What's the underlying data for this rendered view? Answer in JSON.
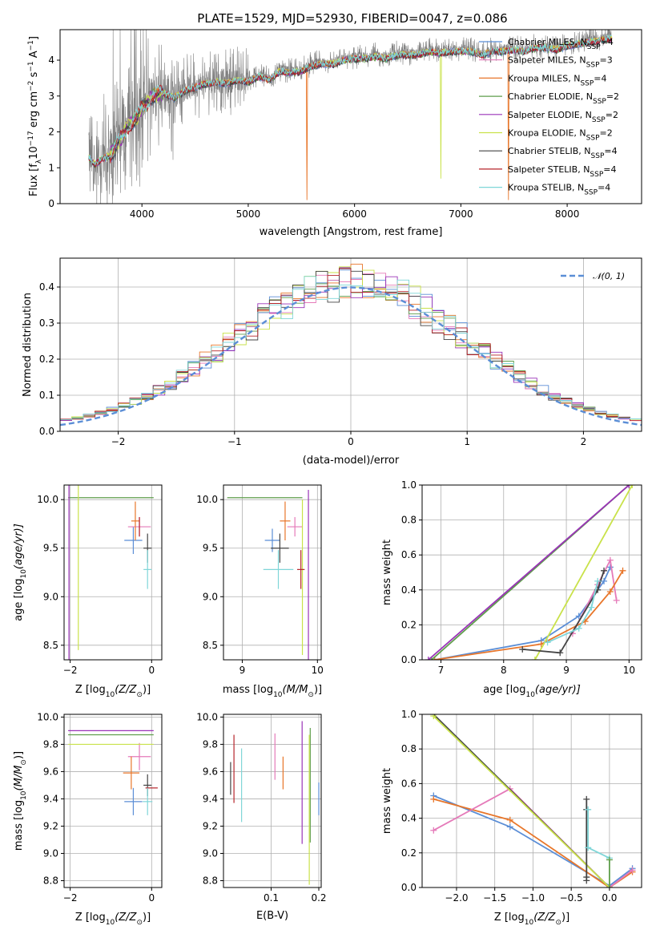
{
  "figure": {
    "title": "PLATE=1529, MJD=52930, FIBERID=0047, z=0.086"
  },
  "colors": {
    "chabrier_miles": "#5b8ed6",
    "salpeter_miles": "#e57ab9",
    "kroupa_miles": "#e8762a",
    "chabrier_elodie": "#5f9e4c",
    "salpeter_elodie": "#9a33b8",
    "kroupa_elodie": "#c9e24a",
    "chabrier_stelib": "#444444",
    "salpeter_stelib": "#b5242a",
    "kroupa_stelib": "#7fd6d8",
    "data": "#7f7f7f",
    "normal": "#5b8ed6",
    "grid": "#b0b0b0"
  },
  "chart_data": [
    {
      "id": "spectrum",
      "type": "line",
      "xlabel": "wavelength [Angstrom, rest frame]",
      "ylabel": "Flux [f",
      "ylabel_parts": [
        "Flux [f",
        "λ",
        "10",
        "−17",
        " erg cm",
        "−2",
        " s",
        "−1",
        " A",
        "−1",
        "]"
      ],
      "xlim": [
        3230,
        8700
      ],
      "ylim": [
        0,
        4.85
      ],
      "xticks": [
        4000,
        5000,
        6000,
        7000,
        8000
      ],
      "yticks": [
        0,
        1,
        2,
        3,
        4
      ],
      "data_continuum": {
        "x": [
          3500,
          3560,
          3620,
          3700,
          3760,
          3820,
          3880,
          3950,
          4000,
          4050,
          4100,
          4200,
          4300,
          4400,
          4500,
          4600,
          4700,
          4800,
          4900,
          5000,
          5100,
          5200,
          5300,
          5400,
          5500,
          5600,
          5700,
          5800,
          5900,
          6000,
          6100,
          6200,
          6300,
          6400,
          6500,
          6600,
          6700,
          6800,
          6900,
          7000,
          7100,
          7200,
          7300,
          7400,
          7500,
          7600,
          7700,
          7800,
          7900,
          8000,
          8100,
          8200,
          8300,
          8400
        ],
        "y": [
          1.35,
          1.15,
          1.3,
          1.4,
          1.7,
          1.95,
          2.25,
          2.45,
          2.75,
          2.85,
          3.05,
          3.15,
          3.0,
          3.2,
          3.3,
          3.4,
          3.45,
          3.4,
          3.5,
          3.45,
          3.6,
          3.5,
          3.75,
          3.7,
          3.75,
          3.9,
          3.95,
          3.95,
          4.05,
          4.1,
          4.1,
          4.15,
          4.1,
          4.2,
          4.2,
          4.2,
          4.3,
          4.25,
          4.3,
          4.3,
          4.3,
          4.2,
          4.3,
          4.3,
          4.35,
          4.3,
          4.4,
          4.4,
          4.35,
          4.45,
          4.5,
          4.55,
          4.6,
          4.65
        ]
      },
      "series": [
        {
          "name": "Chabrier MILES, N",
          "sub": "SSP",
          "suffix": "=4",
          "color_key": "chabrier_miles",
          "dip": null
        },
        {
          "name": "Salpeter MILES, N",
          "sub": "SSP",
          "suffix": "=3",
          "color_key": "salpeter_miles",
          "dip": null
        },
        {
          "name": "Kroupa MILES, N",
          "sub": "SSP",
          "suffix": "=4",
          "color_key": "kroupa_miles",
          "dip": [
            5550,
            7450
          ]
        },
        {
          "name": "Chabrier ELODIE, N",
          "sub": "SSP",
          "suffix": "=2",
          "color_key": "chabrier_elodie",
          "dip": null
        },
        {
          "name": "Salpeter ELODIE, N",
          "sub": "SSP",
          "suffix": "=2",
          "color_key": "salpeter_elodie",
          "dip": null
        },
        {
          "name": "Kroupa ELODIE, N",
          "sub": "SSP",
          "suffix": "=2",
          "color_key": "kroupa_elodie",
          "dip": [
            6810
          ]
        },
        {
          "name": "Chabrier STELIB, N",
          "sub": "SSP",
          "suffix": "=4",
          "color_key": "chabrier_stelib",
          "dip": null
        },
        {
          "name": "Salpeter STELIB, N",
          "sub": "SSP",
          "suffix": "=4",
          "color_key": "salpeter_stelib",
          "dip": null
        },
        {
          "name": "Kroupa STELIB, N",
          "sub": "SSP",
          "suffix": "=4",
          "color_key": "kroupa_stelib",
          "dip": null
        }
      ]
    },
    {
      "id": "residuals",
      "type": "histogram",
      "xlabel": "(data-model)/error",
      "ylabel": "Normed distribution",
      "xlim": [
        -2.5,
        2.5
      ],
      "ylim": [
        0,
        0.48
      ],
      "xticks": [
        -2,
        -1,
        0,
        1,
        2
      ],
      "yticks": [
        0.0,
        0.1,
        0.2,
        0.3,
        0.4
      ],
      "normal_legend": "𝒩(0, 1)",
      "bin_width": 0.1,
      "bin_start": -2.5
    },
    {
      "id": "z_age",
      "type": "errorbar",
      "xlabel": "Z [log",
      "xlabel_parts": [
        "Z [log",
        "10",
        "(Z/Z",
        "⊙",
        ")]"
      ],
      "ylabel_parts": [
        "age  [log",
        "10",
        "(age/yr)]"
      ],
      "xlim": [
        -2.15,
        0.25
      ],
      "ylim": [
        8.35,
        10.15
      ],
      "xticks": [
        -2,
        0
      ],
      "yticks": [
        8.5,
        9.0,
        9.5,
        10.0
      ],
      "points": [
        {
          "x": -0.45,
          "y": 9.58,
          "xe": 0.22,
          "ye": 0.14,
          "color_key": "chabrier_miles"
        },
        {
          "x": -0.3,
          "y": 9.72,
          "xe": 0.28,
          "ye": 0.1,
          "color_key": "salpeter_miles"
        },
        {
          "x": -0.4,
          "y": 9.78,
          "xe": 0.1,
          "ye": 0.2,
          "color_key": "kroupa_miles"
        },
        {
          "x": -1.0,
          "y": 10.02,
          "xe": 1.05,
          "ye": 0.0,
          "color_key": "chabrier_elodie"
        },
        {
          "x": -2.03,
          "y": 9.0,
          "xe": 0.0,
          "ye": 1.15,
          "color_key": "salpeter_elodie"
        },
        {
          "x": -1.8,
          "y": 9.3,
          "xe": 0.0,
          "ye": 0.85,
          "color_key": "kroupa_elodie"
        },
        {
          "x": -0.1,
          "y": 9.5,
          "xe": 0.1,
          "ye": 0.15,
          "color_key": "chabrier_stelib"
        },
        {
          "x": -0.3,
          "y": 9.72,
          "xe": 0.0,
          "ye": 0.1,
          "color_key": "salpeter_stelib"
        },
        {
          "x": -0.1,
          "y": 9.28,
          "xe": 0.1,
          "ye": 0.2,
          "color_key": "kroupa_stelib"
        }
      ]
    },
    {
      "id": "mass_age",
      "type": "errorbar",
      "xlabel_parts": [
        "mass [log",
        "10",
        "(M/M",
        "⊙",
        ")]"
      ],
      "ylabel_parts": [],
      "xlim": [
        8.75,
        10.05
      ],
      "ylim": [
        8.35,
        10.15
      ],
      "xticks": [
        9,
        10
      ],
      "yticks": [
        8.5,
        9.0,
        9.5,
        10.0
      ],
      "points": [
        {
          "x": 9.4,
          "y": 9.58,
          "xe": 0.1,
          "ye": 0.12,
          "color_key": "chabrier_miles"
        },
        {
          "x": 9.7,
          "y": 9.72,
          "xe": 0.1,
          "ye": 0.1,
          "color_key": "salpeter_miles"
        },
        {
          "x": 9.57,
          "y": 9.78,
          "xe": 0.07,
          "ye": 0.2,
          "color_key": "kroupa_miles"
        },
        {
          "x": 9.3,
          "y": 10.02,
          "xe": 0.5,
          "ye": 0.0,
          "color_key": "chabrier_elodie"
        },
        {
          "x": 9.88,
          "y": 9.0,
          "xe": 0.0,
          "ye": 1.1,
          "color_key": "salpeter_elodie"
        },
        {
          "x": 9.8,
          "y": 9.2,
          "xe": 0.0,
          "ye": 0.8,
          "color_key": "kroupa_elodie"
        },
        {
          "x": 9.5,
          "y": 9.5,
          "xe": 0.12,
          "ye": 0.15,
          "color_key": "chabrier_stelib"
        },
        {
          "x": 9.78,
          "y": 9.28,
          "xe": 0.05,
          "ye": 0.2,
          "color_key": "salpeter_stelib"
        },
        {
          "x": 9.48,
          "y": 9.28,
          "xe": 0.2,
          "ye": 0.2,
          "color_key": "kroupa_stelib"
        }
      ]
    },
    {
      "id": "age_weight",
      "type": "line",
      "xlabel_parts": [
        "age  [log",
        "10",
        "(age/yr)]"
      ],
      "ylabel": "mass weight",
      "xlim": [
        6.7,
        10.2
      ],
      "ylim": [
        0,
        1.0
      ],
      "xticks": [
        7,
        8,
        9,
        10
      ],
      "yticks": [
        0.0,
        0.2,
        0.4,
        0.6,
        0.8,
        1.0
      ],
      "series": [
        {
          "color_key": "chabrier_miles",
          "x": [
            6.9,
            8.6,
            9.2,
            9.6,
            9.7
          ],
          "y": [
            0.0,
            0.11,
            0.25,
            0.45,
            0.53
          ]
        },
        {
          "color_key": "salpeter_miles",
          "x": [
            9.1,
            9.5,
            9.7,
            9.8
          ],
          "y": [
            0.15,
            0.43,
            0.57,
            0.34
          ]
        },
        {
          "color_key": "kroupa_miles",
          "x": [
            6.9,
            8.6,
            9.3,
            9.7,
            9.9
          ],
          "y": [
            0.0,
            0.09,
            0.22,
            0.39,
            0.51
          ]
        },
        {
          "color_key": "chabrier_elodie",
          "x": [
            6.85,
            10.0
          ],
          "y": [
            0.0,
            1.0
          ]
        },
        {
          "color_key": "salpeter_elodie",
          "x": [
            6.8,
            10.0
          ],
          "y": [
            0.0,
            1.0
          ]
        },
        {
          "color_key": "kroupa_elodie",
          "x": [
            8.5,
            10.05
          ],
          "y": [
            0.0,
            1.0
          ]
        },
        {
          "color_key": "chabrier_stelib",
          "x": [
            8.3,
            8.9,
            9.5,
            9.6
          ],
          "y": [
            0.06,
            0.04,
            0.4,
            0.51
          ]
        },
        {
          "color_key": "kroupa_stelib",
          "x": [
            8.7,
            9.2,
            9.4,
            9.5
          ],
          "y": [
            0.1,
            0.18,
            0.3,
            0.45
          ]
        }
      ]
    },
    {
      "id": "z_mass",
      "type": "errorbar",
      "xlabel_parts": [
        "Z [log",
        "10",
        "(Z/Z",
        "⊙",
        ")]"
      ],
      "ylabel_parts": [
        "mass [log",
        "10",
        "(M/M",
        "⊙",
        ")]"
      ],
      "xlim": [
        -2.15,
        0.25
      ],
      "ylim": [
        8.75,
        10.02
      ],
      "xticks": [
        -2,
        0
      ],
      "yticks": [
        8.8,
        9.0,
        9.2,
        9.4,
        9.6,
        9.8,
        10.0
      ],
      "points": [
        {
          "x": -0.45,
          "y": 9.38,
          "xe": 0.22,
          "ye": 0.1,
          "color_key": "chabrier_miles"
        },
        {
          "x": -0.3,
          "y": 9.71,
          "xe": 0.28,
          "ye": 0.1,
          "color_key": "salpeter_miles"
        },
        {
          "x": -0.5,
          "y": 9.59,
          "xe": 0.2,
          "ye": 0.12,
          "color_key": "kroupa_miles"
        },
        {
          "x": -1.0,
          "y": 9.87,
          "xe": 1.05,
          "ye": 0.0,
          "color_key": "chabrier_elodie"
        },
        {
          "x": -1.0,
          "y": 9.9,
          "xe": 1.05,
          "ye": 0.0,
          "color_key": "salpeter_elodie"
        },
        {
          "x": -1.0,
          "y": 9.8,
          "xe": 1.05,
          "ye": 0.0,
          "color_key": "kroupa_elodie"
        },
        {
          "x": -0.1,
          "y": 9.5,
          "xe": 0.1,
          "ye": 0.08,
          "color_key": "chabrier_stelib"
        },
        {
          "x": 0.0,
          "y": 9.48,
          "xe": 0.15,
          "ye": 0.0,
          "color_key": "salpeter_stelib"
        },
        {
          "x": -0.1,
          "y": 9.38,
          "xe": 0.12,
          "ye": 0.1,
          "color_key": "kroupa_stelib"
        }
      ]
    },
    {
      "id": "ebv",
      "type": "errorbar",
      "xlabel": "E(B-V)",
      "xlim": [
        0.0,
        0.205
      ],
      "ylim": [
        8.75,
        10.02
      ],
      "xticks": [
        0.1,
        0.2
      ],
      "yticks": [
        8.8,
        9.0,
        9.2,
        9.4,
        9.6,
        9.8,
        10.0
      ],
      "points": [
        {
          "x": 0.2,
          "y": 9.4,
          "xe": 0.0,
          "ye": 0.12,
          "color_key": "chabrier_miles"
        },
        {
          "x": 0.108,
          "y": 9.71,
          "xe": 0.0,
          "ye": 0.17,
          "color_key": "salpeter_miles"
        },
        {
          "x": 0.125,
          "y": 9.59,
          "xe": 0.0,
          "ye": 0.12,
          "color_key": "kroupa_miles"
        },
        {
          "x": 0.182,
          "y": 9.5,
          "xe": 0.0,
          "ye": 0.42,
          "color_key": "chabrier_elodie"
        },
        {
          "x": 0.165,
          "y": 9.52,
          "xe": 0.0,
          "ye": 0.45,
          "color_key": "salpeter_elodie"
        },
        {
          "x": 0.18,
          "y": 9.32,
          "xe": 0.0,
          "ye": 0.55,
          "color_key": "kroupa_elodie"
        },
        {
          "x": 0.015,
          "y": 9.55,
          "xe": 0.0,
          "ye": 0.12,
          "color_key": "chabrier_stelib"
        },
        {
          "x": 0.022,
          "y": 9.62,
          "xe": 0.0,
          "ye": 0.25,
          "color_key": "salpeter_stelib"
        },
        {
          "x": 0.038,
          "y": 9.5,
          "xe": 0.0,
          "ye": 0.27,
          "color_key": "kroupa_stelib"
        }
      ]
    },
    {
      "id": "z_weight",
      "type": "line",
      "xlabel_parts": [
        "Z [log",
        "10",
        "(Z/Z",
        "⊙",
        ")]"
      ],
      "ylabel": "mass weight",
      "xlim": [
        -2.45,
        0.42
      ],
      "ylim": [
        0,
        1.0
      ],
      "xticks": [
        -2.0,
        -1.5,
        -1.0,
        -0.5,
        0.0
      ],
      "yticks": [
        0.0,
        0.2,
        0.4,
        0.6,
        0.8,
        1.0
      ],
      "series": [
        {
          "color_key": "chabrier_miles",
          "x": [
            -2.3,
            -1.3,
            0.0,
            0.3
          ],
          "y": [
            0.53,
            0.35,
            0.01,
            0.11
          ]
        },
        {
          "color_key": "kroupa_miles",
          "x": [
            -2.3,
            -1.3,
            0.0,
            0.3
          ],
          "y": [
            0.51,
            0.39,
            0.0,
            0.09
          ]
        },
        {
          "color_key": "salpeter_miles",
          "x": [
            -2.3,
            -1.3,
            0.0,
            0.3
          ],
          "y": [
            0.33,
            0.57,
            0.0,
            0.1
          ]
        },
        {
          "color_key": "chabrier_stelib",
          "x": [
            -2.3,
            0.0
          ],
          "y": [
            1.0,
            0.0
          ]
        },
        {
          "color_key": "kroupa_elodie",
          "x": [
            -2.3,
            0.0
          ],
          "y": [
            0.99,
            0.0
          ]
        },
        {
          "color_key": "chabrier_stelib",
          "x": [
            -0.3,
            -0.3,
            -0.3,
            -0.3
          ],
          "y": [
            0.04,
            0.51,
            0.06,
            0.45
          ]
        },
        {
          "color_key": "kroupa_stelib",
          "x": [
            -0.28,
            -0.28,
            0.0
          ],
          "y": [
            0.45,
            0.23,
            0.17
          ]
        },
        {
          "color_key": "chabrier_elodie",
          "x": [
            0.0,
            0.0
          ],
          "y": [
            0.0,
            0.16
          ]
        }
      ]
    }
  ]
}
